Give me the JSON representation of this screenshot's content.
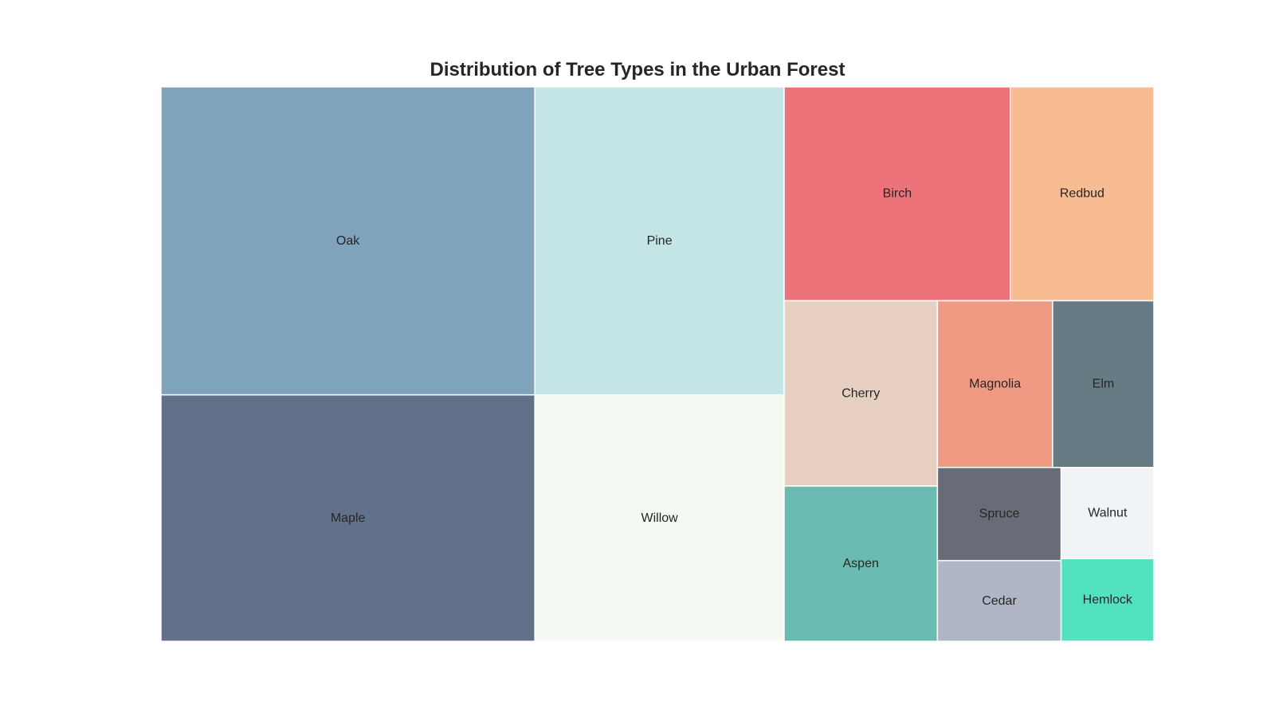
{
  "chart_data": {
    "type": "treemap",
    "title": "Distribution of Tree Types in the Urban Forest",
    "items": [
      {
        "label": "Oak",
        "value": 150,
        "color": "#7ea3ba"
      },
      {
        "label": "Maple",
        "value": 120,
        "color": "#617189"
      },
      {
        "label": "Pine",
        "value": 100,
        "color": "#c3e5e5"
      },
      {
        "label": "Willow",
        "value": 80,
        "color": "#f4f9f1"
      },
      {
        "label": "Birch",
        "value": 63,
        "color": "#ed737a"
      },
      {
        "label": "Redbud",
        "value": 40,
        "color": "#f7bc91"
      },
      {
        "label": "Cherry",
        "value": 37,
        "color": "#e7d0c1"
      },
      {
        "label": "Aspen",
        "value": 31,
        "color": "#6abbb1"
      },
      {
        "label": "Magnolia",
        "value": 25,
        "color": "#f09a84"
      },
      {
        "label": "Elm",
        "value": 22,
        "color": "#667b83"
      },
      {
        "label": "Spruce",
        "value": 15,
        "color": "#696b78"
      },
      {
        "label": "Cedar",
        "value": 13,
        "color": "#b0b6c5"
      },
      {
        "label": "Walnut",
        "value": 11,
        "color": "#f1f4f7"
      },
      {
        "label": "Hemlock",
        "value": 10,
        "color": "#52e2bf"
      }
    ]
  }
}
